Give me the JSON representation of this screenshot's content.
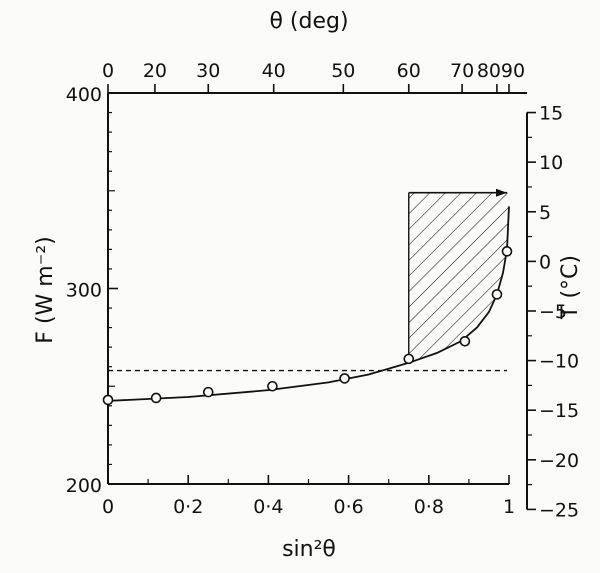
{
  "chart_data": {
    "type": "line",
    "x_axis": {
      "label": "sin²θ",
      "range": [
        0,
        1
      ],
      "ticks": [
        0,
        0.2,
        0.4,
        0.6,
        0.8,
        1
      ],
      "tick_labels": [
        "0",
        "0·2",
        "0·4",
        "0·6",
        "0·8",
        "1"
      ]
    },
    "y_axis": {
      "label": "F (W m⁻²)",
      "range": [
        200,
        400
      ],
      "ticks": [
        200,
        300,
        400
      ],
      "tick_labels": [
        "200",
        "300",
        "400"
      ]
    },
    "top_axis": {
      "label": "θ (deg)",
      "ticks_deg": [
        0,
        20,
        30,
        40,
        50,
        60,
        70,
        80,
        90
      ],
      "tick_labels": [
        "0",
        "20",
        "30",
        "40",
        "50",
        "60",
        "70",
        "80",
        "90"
      ]
    },
    "right_axis": {
      "label": "T (°C)",
      "ticks_c": [
        15,
        10,
        5,
        0,
        -5,
        -10,
        -15,
        -20,
        -25
      ],
      "tick_labels": [
        "15",
        "10",
        "5",
        "0",
        "−5",
        "−10",
        "−15",
        "−20",
        "−25"
      ],
      "F_at_T": [
        [
          15,
          390
        ],
        [
          -25,
          187
        ]
      ]
    },
    "series": [
      {
        "points": [
          {
            "x": 0.0,
            "y": 243
          },
          {
            "x": 0.12,
            "y": 244
          },
          {
            "x": 0.25,
            "y": 247
          },
          {
            "x": 0.41,
            "y": 250
          },
          {
            "x": 0.59,
            "y": 254
          },
          {
            "x": 0.75,
            "y": 264
          },
          {
            "x": 0.89,
            "y": 273
          },
          {
            "x": 0.97,
            "y": 297
          },
          {
            "x": 0.995,
            "y": 319
          }
        ],
        "curve": [
          [
            0,
            242.5
          ],
          [
            0.2,
            244.5
          ],
          [
            0.4,
            248
          ],
          [
            0.55,
            252
          ],
          [
            0.65,
            256
          ],
          [
            0.75,
            262
          ],
          [
            0.82,
            267
          ],
          [
            0.88,
            273
          ],
          [
            0.92,
            280
          ],
          [
            0.95,
            288
          ],
          [
            0.97,
            297
          ],
          [
            0.985,
            308
          ],
          [
            0.995,
            320
          ],
          [
            1.0,
            342
          ]
        ]
      }
    ],
    "reference_line": {
      "y": 258,
      "style": "dashed"
    },
    "shaded_region": {
      "x_range": [
        0.75,
        1.0
      ],
      "top_y": 349,
      "style": "hatched"
    },
    "arrow": {
      "from": [
        0.75,
        349
      ],
      "to": [
        1.0,
        349
      ]
    }
  }
}
